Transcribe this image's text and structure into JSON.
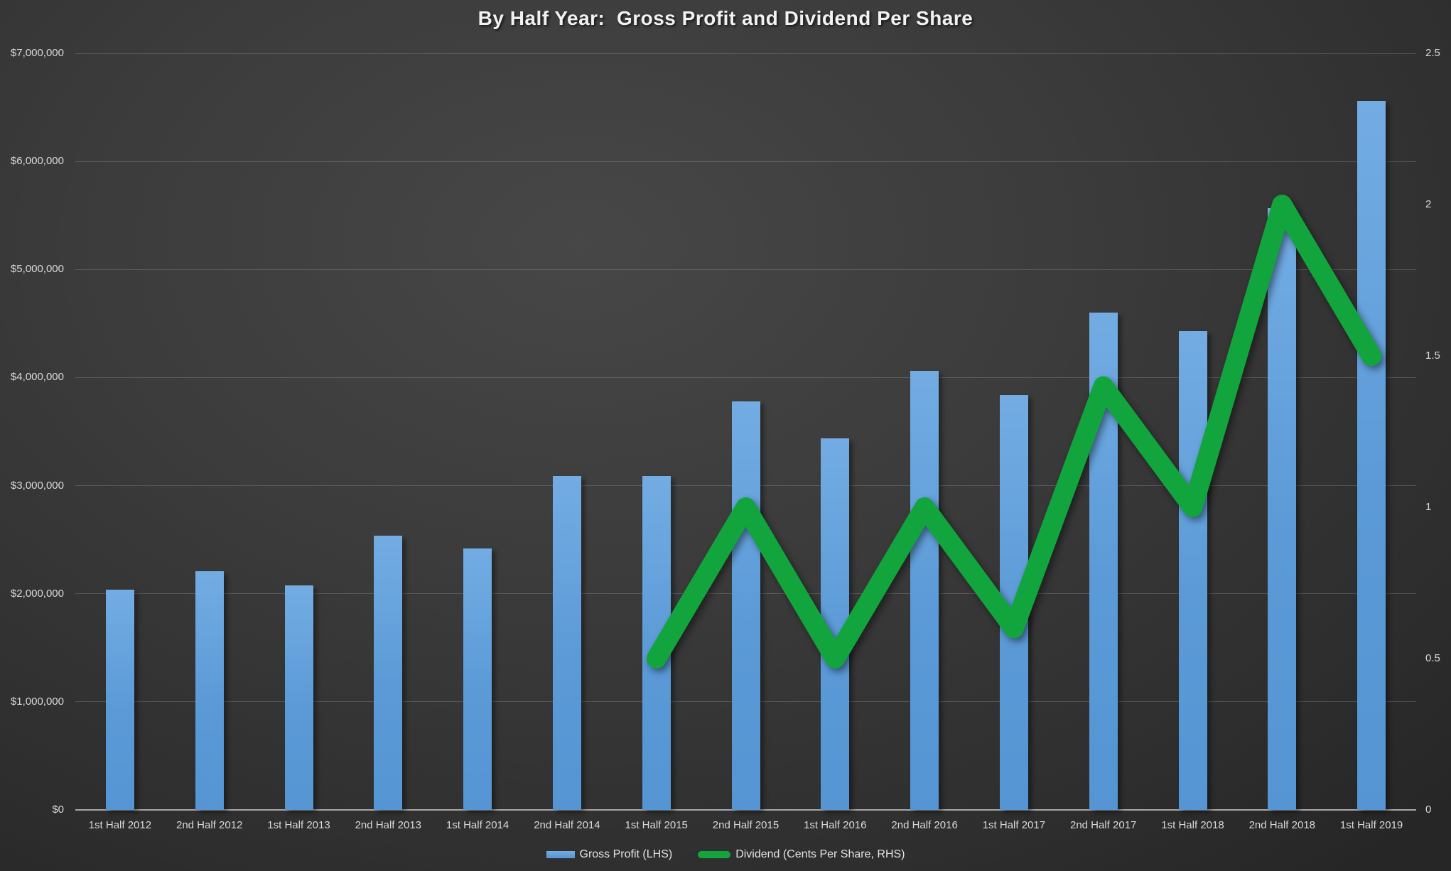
{
  "chart_data": {
    "type": "bar",
    "subtype": "combo-bar-line",
    "title": "By Half Year:  Gross Profit and Dividend Per Share",
    "categories": [
      "1st Half 2012",
      "2nd Half 2012",
      "1st Half 2013",
      "2nd Half 2013",
      "1st Half 2014",
      "2nd Half 2014",
      "1st Half 2015",
      "2nd Half 2015",
      "1st Half 2016",
      "2nd Half 2016",
      "1st Half 2017",
      "2nd Half 2017",
      "1st Half 2018",
      "2nd Half 2018",
      "1st Half 2019"
    ],
    "series": [
      {
        "name": "Gross Profit (LHS)",
        "type": "bar",
        "axis": "left",
        "color": "#5b9bd5",
        "values": [
          2040000,
          2210000,
          2080000,
          2540000,
          2420000,
          3090000,
          3090000,
          3780000,
          3440000,
          4060000,
          3840000,
          4600000,
          4430000,
          5570000,
          6560000
        ]
      },
      {
        "name": "Dividend (Cents Per Share, RHS)",
        "type": "line",
        "axis": "right",
        "color": "#12a53e",
        "values": [
          null,
          null,
          null,
          null,
          null,
          null,
          0.5,
          1,
          0.5,
          1,
          0.6,
          1.4,
          1,
          2,
          1.5
        ]
      }
    ],
    "left_axis": {
      "min": 0,
      "max": 7000000,
      "step": 1000000,
      "tick_labels": [
        "$0",
        "$1,000,000",
        "$2,000,000",
        "$3,000,000",
        "$4,000,000",
        "$5,000,000",
        "$6,000,000",
        "$7,000,000"
      ]
    },
    "right_axis": {
      "min": 0,
      "max": 2.5,
      "step": 0.5,
      "tick_labels": [
        "0",
        "0.5",
        "1",
        "1.5",
        "2",
        "2.5"
      ]
    },
    "grid": true,
    "legend_position": "bottom"
  },
  "colors": {
    "background_center": "#474747",
    "background_edge": "#262626",
    "bar_top": "#73ace3",
    "bar_bottom": "#5595d3",
    "line_green": "#12a53e",
    "gridline": "rgba(255,255,255,0.16)",
    "axis_line": "#a8a8a8",
    "tick_text": "#d9d9d9",
    "title_text": "#f2f2f2",
    "legend_text": "#e3e3e3"
  }
}
